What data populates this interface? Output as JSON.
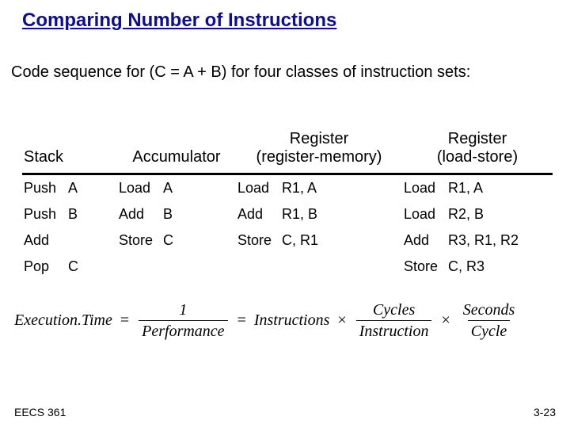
{
  "title": "Comparing Number of Instructions",
  "subtitle": "Code sequence for (C = A + B) for four classes of instruction sets:",
  "table": {
    "headers": {
      "stack": "Stack",
      "accumulator": "Accumulator",
      "reg_mem_l1": "Register",
      "reg_mem_l2": "(register-memory)",
      "reg_ls_l1": "Register",
      "reg_ls_l2": "(load-store)"
    },
    "rows": [
      {
        "c1_op": "Push",
        "c1_arg": "A",
        "c2_op": "Load",
        "c2_arg": "A",
        "c3_op": "Load",
        "c3_arg": "R1, A",
        "c4_op": "Load",
        "c4_arg": "R1, A"
      },
      {
        "c1_op": "Push",
        "c1_arg": "B",
        "c2_op": "Add",
        "c2_arg": "B",
        "c3_op": "Add",
        "c3_arg": "R1, B",
        "c4_op": "Load",
        "c4_arg": "R2, B"
      },
      {
        "c1_op": "Add",
        "c1_arg": "",
        "c2_op": "Store",
        "c2_arg": "C",
        "c3_op": "Store",
        "c3_arg": "C, R1",
        "c4_op": "Add",
        "c4_arg": "R3, R1, R2"
      },
      {
        "c1_op": "Pop",
        "c1_arg": "C",
        "c2_op": "",
        "c2_arg": "",
        "c3_op": "",
        "c3_arg": "",
        "c4_op": "Store",
        "c4_arg": "C, R3"
      }
    ]
  },
  "formula": {
    "lhs": "Execution.Time",
    "frac1_num": "1",
    "frac1_den": "Performance",
    "term2": "Instructions",
    "frac3_num": "Cycles",
    "frac3_den": "Instruction",
    "frac4_num": "Seconds",
    "frac4_den": "Cycle",
    "eq": "=",
    "mul": "×"
  },
  "footer": {
    "left": "EECS 361",
    "right": "3-23"
  }
}
